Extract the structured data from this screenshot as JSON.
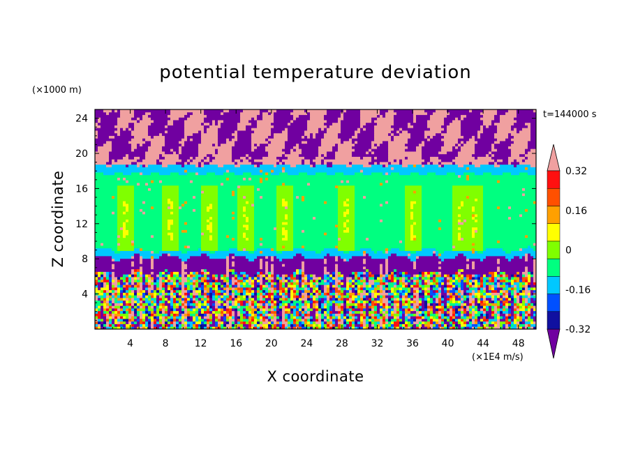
{
  "chart_data": {
    "type": "heatmap",
    "title": "potential temperature deviation",
    "xlabel": "X coordinate",
    "ylabel": "Z coordinate",
    "x_unit_label": "(×1E4 m/s)",
    "y_unit_label": "(×1000 m)",
    "time_label": "t=144000 s",
    "xlim": [
      0,
      50
    ],
    "ylim": [
      0,
      25
    ],
    "x_ticks": [
      4,
      8,
      12,
      16,
      20,
      24,
      28,
      32,
      36,
      40,
      44,
      48
    ],
    "y_ticks": [
      4,
      8,
      12,
      16,
      20,
      24
    ],
    "x_tick_labels": [
      "4",
      "8",
      "12",
      "16",
      "20",
      "24",
      "28",
      "32",
      "36",
      "40",
      "44",
      "48"
    ],
    "y_tick_labels": [
      "4",
      "8",
      "12",
      "16",
      "20",
      "24"
    ],
    "colorbar": {
      "levels": [
        -0.4,
        -0.32,
        -0.24,
        -0.16,
        -0.08,
        0,
        0.08,
        0.16,
        0.24,
        0.32,
        0.4
      ],
      "colors": [
        "#7000a0",
        "#1010a0",
        "#0050ff",
        "#00c8ff",
        "#00ff80",
        "#80ff00",
        "#ffff00",
        "#ffa000",
        "#ff5000",
        "#ff1010",
        "#f0a0a0"
      ],
      "labels": [
        "0.32",
        "0.16",
        "0",
        "-0.16",
        "-0.32"
      ],
      "label_values": [
        0.32,
        0.16,
        0,
        -0.16,
        -0.32
      ]
    },
    "regions": [
      {
        "name": "upper layer",
        "z_range": [
          18.7,
          25
        ],
        "values": "alternating -0.4 (purple) and +0.4 (pink) patches"
      },
      {
        "name": "mid layer",
        "z_range": [
          8,
          18.7
        ],
        "values": "mostly -0.08 to 0 (green), with columns of 0 to +0.16"
      },
      {
        "name": "transition band",
        "z_range": [
          7,
          8
        ],
        "values": "about -0.4 (purple) with pink plumes"
      },
      {
        "name": "boundary layer",
        "z_range": [
          0,
          7
        ],
        "values": "turbulent mix from -0.4 to +0.4"
      }
    ]
  }
}
